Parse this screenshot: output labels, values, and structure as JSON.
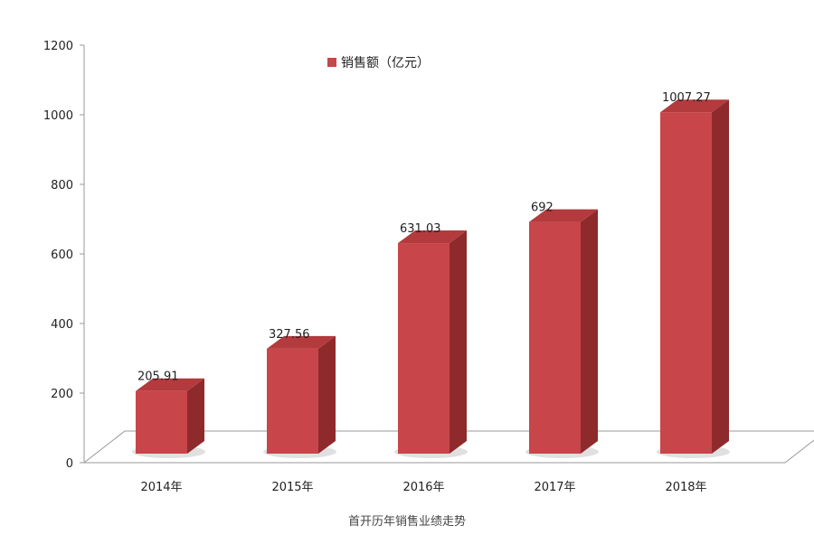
{
  "caption": "首开历年销售业绩走势",
  "chart_data": {
    "type": "bar",
    "categories": [
      "2014年",
      "2015年",
      "2016年",
      "2017年",
      "2018年"
    ],
    "series": [
      {
        "name": "销售额（亿元）",
        "values": [
          205.91,
          327.56,
          631.03,
          692,
          1007.27
        ],
        "value_labels": [
          "205.91",
          "327.56",
          "631.03",
          "692",
          "1007.27"
        ]
      }
    ],
    "yticks": [
      0,
      200,
      400,
      600,
      800,
      1000,
      1200
    ],
    "ylim": [
      0,
      1200
    ],
    "legend": "top-center",
    "grid": false,
    "style": "3d-column",
    "colors": {
      "bar_front": "#c8454a",
      "bar_side": "#8e2a2c",
      "bar_top": "#b33a3d",
      "axis": "#9a9a9a"
    }
  }
}
